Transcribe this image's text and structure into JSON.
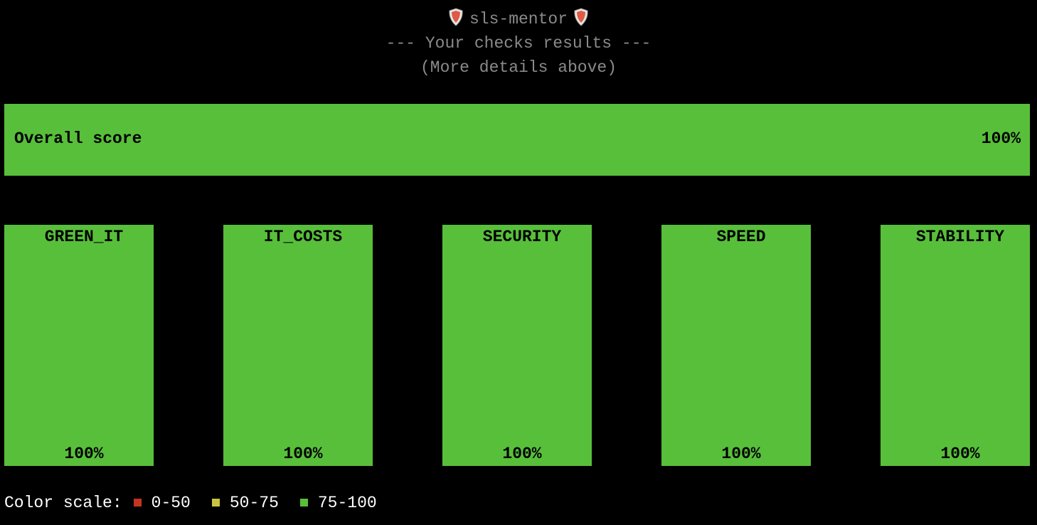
{
  "header": {
    "title": "sls-mentor",
    "subtitle": "--- Your checks results ---",
    "note": "(More details above)"
  },
  "overall": {
    "label": "Overall score",
    "score": "100%"
  },
  "categories": [
    {
      "name": "GREEN_IT",
      "score": "100%"
    },
    {
      "name": "IT_COSTS",
      "score": "100%"
    },
    {
      "name": "SECURITY",
      "score": "100%"
    },
    {
      "name": "SPEED",
      "score": "100%"
    },
    {
      "name": "STABILITY",
      "score": "100%"
    }
  ],
  "color_scale": {
    "label": "Color scale:",
    "items": [
      {
        "label": "0-50",
        "color": "#c4351f"
      },
      {
        "label": "50-75",
        "color": "#c9c43f"
      },
      {
        "label": "75-100",
        "color": "#58bf3b"
      }
    ]
  }
}
